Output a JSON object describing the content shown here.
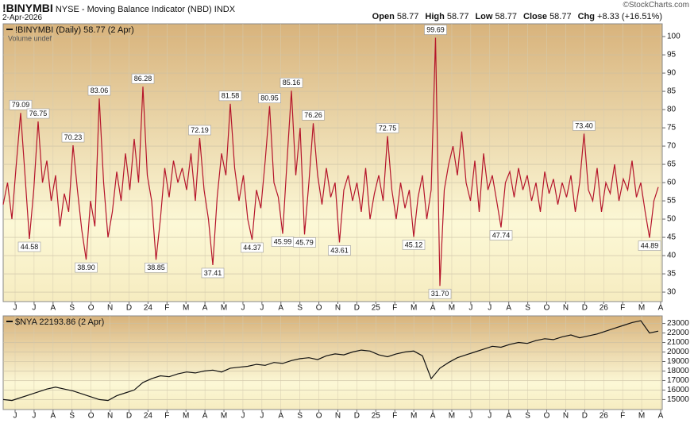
{
  "header": {
    "symbol": "!BINYMBI",
    "description": "NYSE - Moving Balance Indicator (NBD)",
    "exchange": "INDX",
    "date": "2-Apr-2026",
    "copyright": "©StockCharts.com",
    "quote": [
      {
        "label": "Open",
        "value": "58.77"
      },
      {
        "label": "High",
        "value": "58.77"
      },
      {
        "label": "Low",
        "value": "58.77"
      },
      {
        "label": "Close",
        "value": "58.77"
      },
      {
        "label": "Chg",
        "value": "+8.33 (+16.51%)"
      }
    ]
  },
  "chart_data": [
    {
      "type": "line",
      "legend": "!BINYMBI (Daily) 58.77 (2 Apr)",
      "note": "Volume undef",
      "color": "#b5152b",
      "grid": true,
      "x_labels": [
        "J",
        "J",
        "A",
        "S",
        "O",
        "N",
        "D",
        "24",
        "F",
        "M",
        "A",
        "M",
        "J",
        "J",
        "A",
        "S",
        "O",
        "N",
        "D",
        "25",
        "F",
        "M",
        "A",
        "M",
        "J",
        "J",
        "A",
        "S",
        "O",
        "N",
        "D",
        "26",
        "F",
        "M",
        "A"
      ],
      "values": [
        54,
        60,
        50,
        65,
        79.09,
        62,
        44.58,
        58,
        76.75,
        60,
        66,
        55,
        62,
        48,
        57,
        52,
        70.23,
        58,
        47,
        38.9,
        55,
        48,
        83.06,
        60,
        45,
        52,
        63,
        55,
        68,
        58,
        72,
        60,
        86.28,
        62,
        55,
        38.85,
        50,
        64,
        56,
        66,
        60,
        64,
        58,
        68,
        55,
        72.19,
        58,
        50,
        37.41,
        56,
        68,
        62,
        81.58,
        64,
        55,
        62,
        50,
        44.37,
        58,
        53,
        66,
        80.95,
        60,
        56,
        45.99,
        66,
        85.16,
        62,
        75,
        45.79,
        60,
        76.26,
        62,
        54,
        64,
        56,
        60,
        43.61,
        58,
        62,
        55,
        60,
        52,
        64,
        50,
        57,
        62,
        55,
        72.75,
        58,
        50,
        60,
        53,
        58,
        45.12,
        56,
        62,
        50,
        58,
        99.69,
        31.7,
        58,
        65,
        70,
        62,
        74,
        60,
        55,
        66,
        52,
        68,
        58,
        62,
        55,
        47.74,
        60,
        63,
        56,
        64,
        58,
        62,
        55,
        60,
        52,
        63,
        57,
        61,
        54,
        60,
        56,
        62,
        52,
        60,
        73.4,
        58,
        55,
        64,
        52,
        60,
        57,
        65,
        55,
        61,
        58,
        66,
        56,
        60,
        52,
        44.89,
        55,
        58.77
      ],
      "value_labels": [
        null,
        null,
        null,
        null,
        "79.09",
        null,
        "44.58",
        null,
        "76.75",
        null,
        null,
        null,
        null,
        null,
        null,
        null,
        "70.23",
        null,
        null,
        "38.90",
        null,
        null,
        "83.06",
        null,
        null,
        null,
        null,
        null,
        null,
        null,
        null,
        null,
        "86.28",
        null,
        null,
        "38.85",
        null,
        null,
        null,
        null,
        null,
        null,
        null,
        null,
        null,
        "72.19",
        null,
        null,
        "37.41",
        null,
        null,
        null,
        "81.58",
        null,
        null,
        null,
        null,
        "44.37",
        null,
        null,
        null,
        "80.95",
        null,
        null,
        "45.99",
        null,
        "85.16",
        null,
        null,
        "45.79",
        null,
        "76.26",
        null,
        null,
        null,
        null,
        null,
        "43.61",
        null,
        null,
        null,
        null,
        null,
        null,
        null,
        null,
        null,
        null,
        "72.75",
        null,
        null,
        null,
        null,
        null,
        "45.12",
        null,
        null,
        null,
        null,
        "99.69",
        "31.70",
        null,
        null,
        null,
        null,
        null,
        null,
        null,
        null,
        null,
        null,
        null,
        null,
        null,
        "47.74",
        null,
        null,
        null,
        null,
        null,
        null,
        null,
        null,
        null,
        null,
        null,
        null,
        null,
        null,
        null,
        null,
        null,
        null,
        "73.40",
        null,
        null,
        null,
        null,
        null,
        null,
        null,
        null,
        null,
        null,
        null,
        null,
        null,
        null,
        "44.89",
        null,
        null
      ],
      "ylim": [
        27.4,
        103.5
      ],
      "yticks": [
        30,
        35,
        40,
        45,
        50,
        55,
        60,
        65,
        70,
        75,
        80,
        85,
        90,
        95,
        100
      ]
    },
    {
      "type": "line",
      "legend": "$NYA 22193.86 (2 Apr)",
      "color": "#111111",
      "grid": true,
      "x_labels": [
        "J",
        "J",
        "A",
        "S",
        "O",
        "N",
        "D",
        "24",
        "F",
        "M",
        "A",
        "M",
        "J",
        "J",
        "A",
        "S",
        "O",
        "N",
        "D",
        "25",
        "F",
        "M",
        "A",
        "M",
        "J",
        "J",
        "A",
        "S",
        "O",
        "N",
        "D",
        "26",
        "F",
        "M",
        "A"
      ],
      "values": [
        15000,
        14900,
        15200,
        15500,
        15800,
        16100,
        16300,
        16100,
        15900,
        15600,
        15300,
        15000,
        14900,
        15400,
        15700,
        16000,
        16800,
        17200,
        17500,
        17400,
        17700,
        17900,
        17800,
        18000,
        18100,
        17900,
        18300,
        18400,
        18500,
        18700,
        18600,
        18900,
        18800,
        19100,
        19300,
        19400,
        19200,
        19600,
        19800,
        19700,
        20000,
        20200,
        20100,
        19700,
        19500,
        19800,
        20000,
        20100,
        19600,
        17200,
        18300,
        18900,
        19400,
        19700,
        20000,
        20300,
        20600,
        20500,
        20800,
        21000,
        20900,
        21200,
        21400,
        21300,
        21600,
        21800,
        21500,
        21700,
        21900,
        22200,
        22500,
        22800,
        23100,
        23300,
        22000,
        22193.86
      ],
      "ylim": [
        13950,
        23800
      ],
      "yticks": [
        15000,
        16000,
        17000,
        18000,
        19000,
        20000,
        21000,
        22000,
        23000
      ]
    }
  ]
}
